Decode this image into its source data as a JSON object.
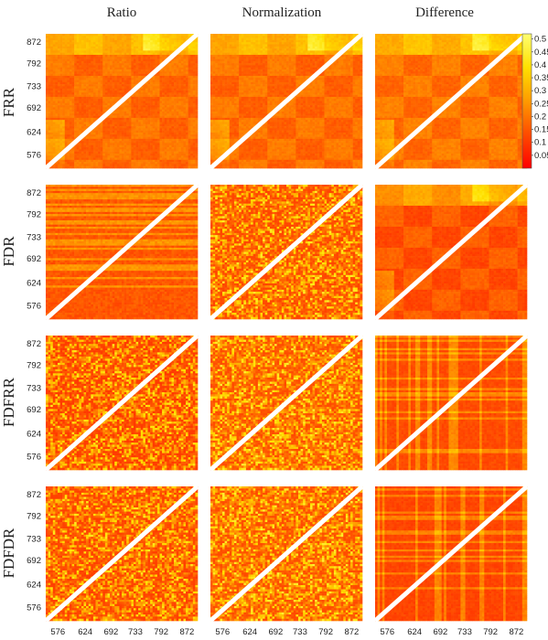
{
  "chart_data": {
    "type": "heatmap",
    "columns": [
      "Ratio",
      "Normalization",
      "Difference"
    ],
    "rows": [
      "FRR",
      "FDR",
      "FDFRR",
      "FDFDR"
    ],
    "tick_labels": [
      "576",
      "624",
      "692",
      "733",
      "792",
      "872"
    ],
    "colorbar": {
      "ticks": [
        "0.5",
        "0.45",
        "0.4",
        "0.35",
        "0.3",
        "0.25",
        "0.2",
        "0.15",
        "0.1",
        "0.05"
      ],
      "range": [
        0,
        0.52
      ],
      "colors": [
        "#ff0000",
        "#ff4a00",
        "#ff9a00",
        "#ffe000",
        "#ffff70"
      ]
    },
    "diagonal_color": "#ffffff",
    "panels": [
      {
        "row": "FRR",
        "column": "Ratio",
        "texture": "smooth",
        "base": 0.14
      },
      {
        "row": "FRR",
        "column": "Normalization",
        "texture": "smooth",
        "base": 0.14
      },
      {
        "row": "FRR",
        "column": "Difference",
        "texture": "smooth",
        "base": 0.15
      },
      {
        "row": "FDR",
        "column": "Ratio",
        "texture": "striped",
        "base": 0.1
      },
      {
        "row": "FDR",
        "column": "Normalization",
        "texture": "noisy",
        "base": 0.12
      },
      {
        "row": "FDR",
        "column": "Difference",
        "texture": "smooth",
        "base": 0.1
      },
      {
        "row": "FDFRR",
        "column": "Ratio",
        "texture": "noisy",
        "base": 0.1
      },
      {
        "row": "FDFRR",
        "column": "Normalization",
        "texture": "noisy",
        "base": 0.13
      },
      {
        "row": "FDFRR",
        "column": "Difference",
        "texture": "banded",
        "base": 0.11
      },
      {
        "row": "FDFDR",
        "column": "Ratio",
        "texture": "noisy",
        "base": 0.11
      },
      {
        "row": "FDFDR",
        "column": "Normalization",
        "texture": "noisy",
        "base": 0.13
      },
      {
        "row": "FDFDR",
        "column": "Difference",
        "texture": "banded",
        "base": 0.1
      }
    ]
  }
}
